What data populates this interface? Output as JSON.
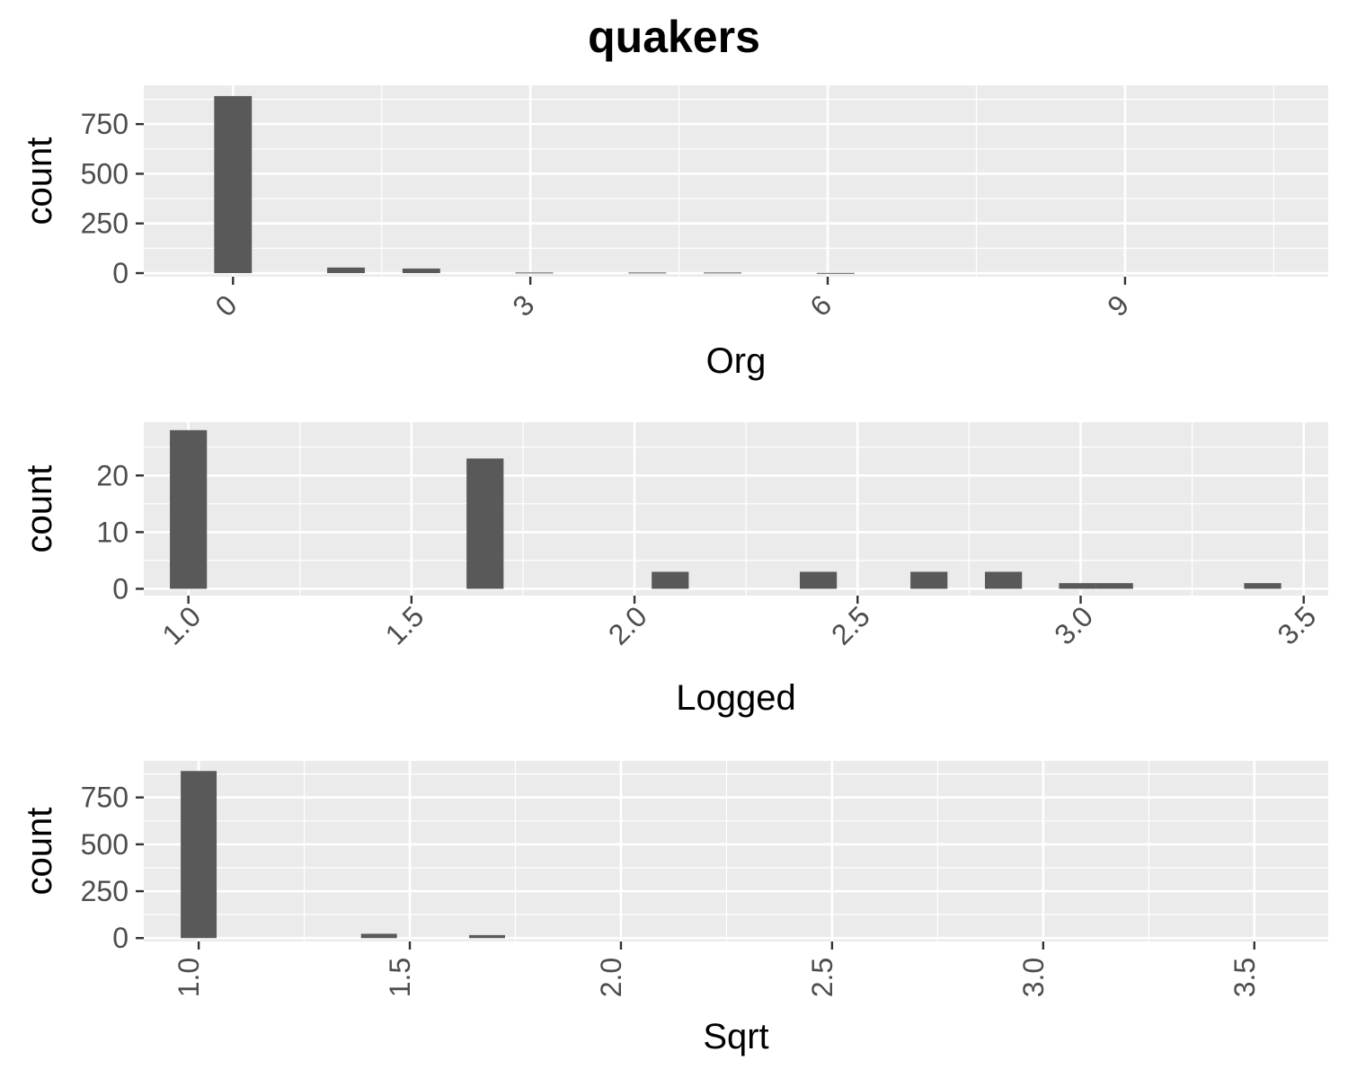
{
  "chart_data": {
    "title": "quakers",
    "type": "histogram",
    "panels": [
      {
        "type": "bar",
        "xlabel": "Org",
        "ylabel": "count",
        "xlim": [
          -0.9,
          11.05
        ],
        "ylim": [
          -18,
          945
        ],
        "x_ticks": [
          0,
          3,
          6,
          9
        ],
        "x_tick_labels": [
          "0",
          "3",
          "6",
          "9"
        ],
        "x_tick_rotation": -45,
        "y_ticks": [
          0,
          250,
          500,
          750
        ],
        "y_tick_labels": [
          "0",
          "250",
          "500",
          "750"
        ],
        "bin_width": 0.38,
        "bins": [
          {
            "x": 0.0,
            "count": 891
          },
          {
            "x": 1.14,
            "count": 28
          },
          {
            "x": 1.9,
            "count": 23
          },
          {
            "x": 3.04,
            "count": 3
          },
          {
            "x": 4.18,
            "count": 3
          },
          {
            "x": 4.94,
            "count": 3
          },
          {
            "x": 6.08,
            "count": 1
          }
        ]
      },
      {
        "type": "bar",
        "xlabel": "Logged",
        "ylabel": "count",
        "xlim": [
          0.9,
          3.555
        ],
        "ylim": [
          -1.2,
          29.4
        ],
        "x_ticks": [
          1.0,
          1.5,
          2.0,
          2.5,
          3.0,
          3.5
        ],
        "x_tick_labels": [
          "1.0",
          "1.5",
          "2.0",
          "2.5",
          "3.0",
          "3.5"
        ],
        "x_tick_rotation": -45,
        "y_ticks": [
          0,
          10,
          20
        ],
        "y_tick_labels": [
          "0",
          "10",
          "20"
        ],
        "bin_width": 0.083,
        "bins": [
          {
            "x": 1.0,
            "count": 28
          },
          {
            "x": 1.665,
            "count": 23
          },
          {
            "x": 2.08,
            "count": 3
          },
          {
            "x": 2.412,
            "count": 3
          },
          {
            "x": 2.66,
            "count": 3
          },
          {
            "x": 2.827,
            "count": 3
          },
          {
            "x": 2.993,
            "count": 1
          },
          {
            "x": 3.076,
            "count": 1
          },
          {
            "x": 3.408,
            "count": 1
          }
        ]
      },
      {
        "type": "bar",
        "xlabel": "Sqrt",
        "ylabel": "count",
        "xlim": [
          0.87,
          3.675
        ],
        "ylim": [
          -18,
          945
        ],
        "x_ticks": [
          1.0,
          1.5,
          2.0,
          2.5,
          3.0,
          3.5
        ],
        "x_tick_labels": [
          "1.0",
          "1.5",
          "2.0",
          "2.5",
          "3.0",
          "3.5"
        ],
        "x_tick_rotation": -90,
        "y_ticks": [
          0,
          250,
          500,
          750
        ],
        "y_tick_labels": [
          "0",
          "250",
          "500",
          "750"
        ],
        "bin_width": 0.085,
        "bins": [
          {
            "x": 1.0,
            "count": 891
          },
          {
            "x": 1.427,
            "count": 23
          },
          {
            "x": 1.683,
            "count": 16
          }
        ]
      }
    ]
  }
}
